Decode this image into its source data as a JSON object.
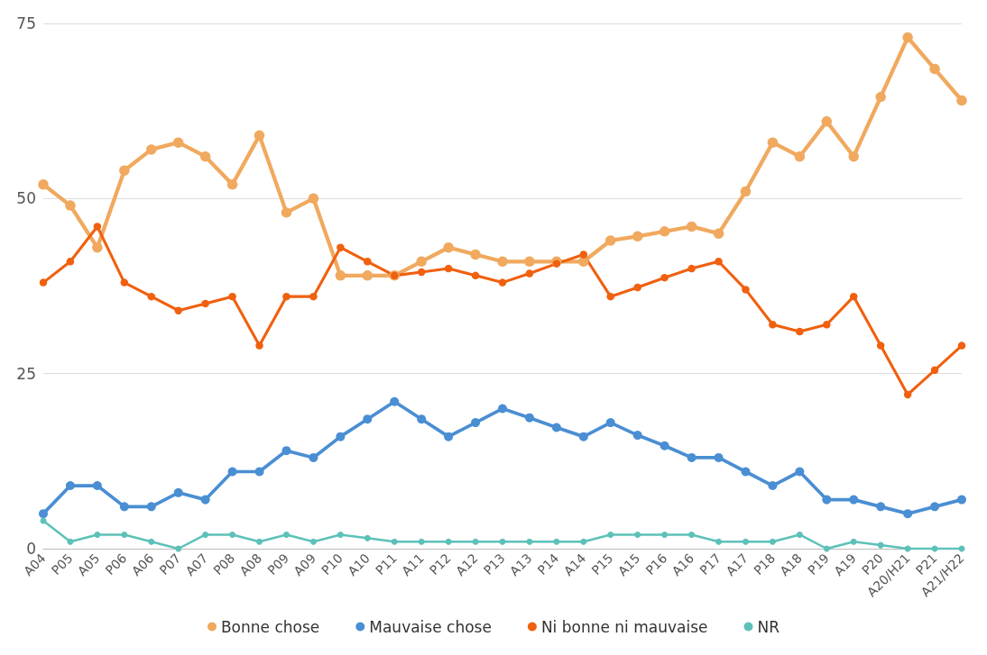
{
  "chart_data": {
    "type": "line",
    "categories": [
      "A04",
      "P05",
      "A05",
      "P06",
      "A06",
      "P07",
      "A07",
      "P08",
      "A08",
      "P09",
      "A09",
      "P10",
      "A10",
      "P11",
      "A11",
      "P12",
      "A12",
      "P13",
      "A13",
      "P14",
      "A14",
      "P15",
      "A15",
      "P16",
      "A16",
      "P17",
      "A17",
      "P18",
      "A18",
      "P19",
      "A19",
      "P20",
      "A20/H21",
      "P21",
      "A21/H22"
    ],
    "series": [
      {
        "name": "Bonne chose",
        "color": "#f0a95f",
        "values": [
          52,
          49,
          43,
          54,
          57,
          58,
          56,
          52,
          59,
          48,
          50,
          39,
          39,
          39,
          41,
          43,
          42,
          41,
          41,
          41,
          41,
          44,
          44.6,
          45.3,
          46,
          45,
          51,
          58,
          56,
          61,
          56,
          64.5,
          73,
          68.5,
          64
        ]
      },
      {
        "name": "Mauvaise chose",
        "color": "#4a8ed3",
        "values": [
          5,
          9,
          9,
          6,
          6,
          8,
          7,
          11,
          11,
          14,
          13,
          16,
          18.5,
          21,
          18.5,
          16,
          18,
          20,
          18.7,
          17.3,
          16,
          18,
          16.2,
          14.7,
          13,
          13,
          11,
          9,
          11,
          7,
          7,
          6,
          5,
          6,
          7
        ]
      },
      {
        "name": "Ni bonne ni mauvaise",
        "color": "#f0600f",
        "values": [
          38,
          41,
          46,
          38,
          36,
          34,
          35,
          36,
          29,
          36,
          36,
          43,
          41,
          39,
          39.5,
          40,
          39,
          38,
          39.3,
          40.7,
          42,
          36,
          37.3,
          38.7,
          40,
          41,
          37,
          32,
          31,
          32,
          36,
          29,
          22,
          25.5,
          29
        ]
      },
      {
        "name": "NR",
        "color": "#5cc1b8",
        "values": [
          4,
          1,
          2,
          2,
          1,
          0,
          2,
          2,
          1,
          2,
          1,
          2,
          1.5,
          1,
          1,
          1,
          1,
          1,
          1,
          1,
          1,
          2,
          2,
          2,
          2,
          1,
          1,
          1,
          2,
          0,
          1,
          0.5,
          0,
          0,
          0
        ]
      }
    ],
    "ylim": [
      0,
      75
    ],
    "yticks": [
      0,
      25,
      50,
      75
    ],
    "grid": "y",
    "legend": "bottom",
    "marker": "circle",
    "line_style": "solid"
  }
}
